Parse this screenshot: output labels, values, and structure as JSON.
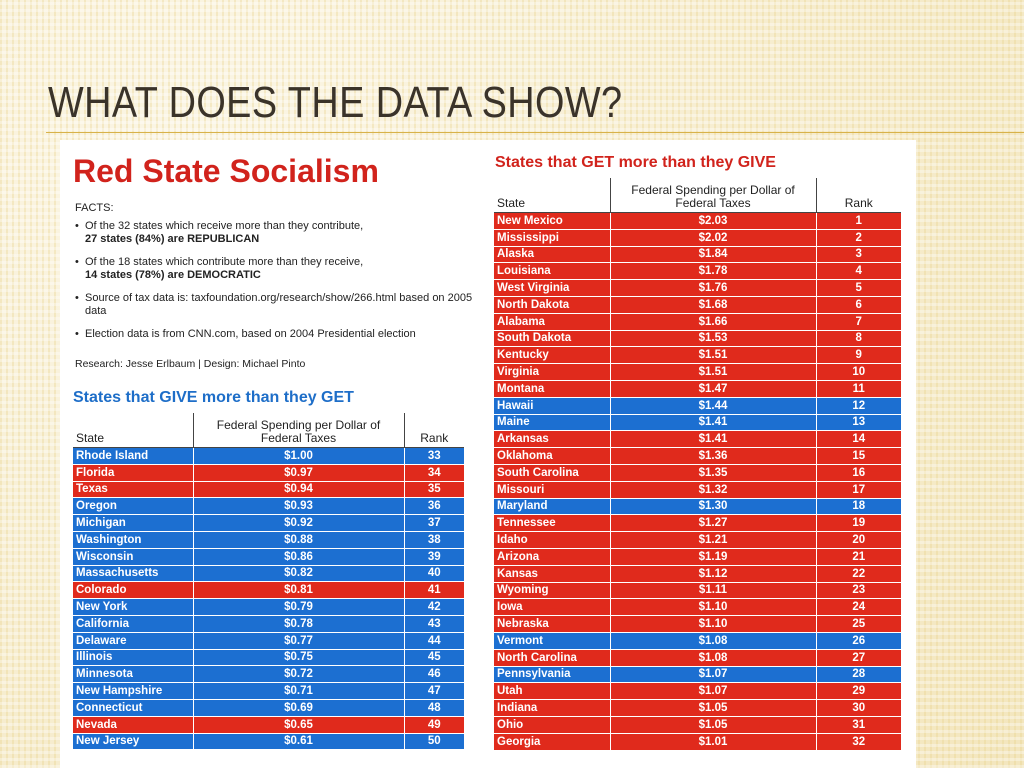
{
  "slide": {
    "title": "WHAT DOES THE DATA SHOW?"
  },
  "graphic": {
    "heading": "Red State Socialism",
    "facts_label": "FACTS:",
    "facts": [
      {
        "text": "Of the 32 states which receive more than they contribute,",
        "emphasis": "27 states (84%) are REPUBLICAN"
      },
      {
        "text": "Of the 18 states which contribute more than they receive,",
        "emphasis": "14 states (78%) are DEMOCRATIC"
      },
      {
        "text": "Source of tax data is: taxfoundation.org/research/show/266.html based on 2005 data"
      },
      {
        "text": "Election data is from CNN.com, based on 2004 Presidential election"
      }
    ],
    "credits": "Research: Jesse Erlbaum | Design: Michael Pinto",
    "colors": {
      "republican": "#e02a1c",
      "democratic": "#1c6fd1",
      "heading": "#d1231c",
      "give_title": "#1e6ec8"
    }
  },
  "give_table": {
    "title": "States that GIVE more than they GET",
    "columns": {
      "state": "State",
      "spending": "Federal Spending per Dollar of Federal Taxes",
      "rank": "Rank"
    },
    "rows": [
      {
        "state": "Rhode Island",
        "spending": "$1.00",
        "rank": "33",
        "party": "D"
      },
      {
        "state": "Florida",
        "spending": "$0.97",
        "rank": "34",
        "party": "R"
      },
      {
        "state": "Texas",
        "spending": "$0.94",
        "rank": "35",
        "party": "R"
      },
      {
        "state": "Oregon",
        "spending": "$0.93",
        "rank": "36",
        "party": "D"
      },
      {
        "state": "Michigan",
        "spending": "$0.92",
        "rank": "37",
        "party": "D"
      },
      {
        "state": "Washington",
        "spending": "$0.88",
        "rank": "38",
        "party": "D"
      },
      {
        "state": "Wisconsin",
        "spending": "$0.86",
        "rank": "39",
        "party": "D"
      },
      {
        "state": "Massachusetts",
        "spending": "$0.82",
        "rank": "40",
        "party": "D"
      },
      {
        "state": "Colorado",
        "spending": "$0.81",
        "rank": "41",
        "party": "R"
      },
      {
        "state": "New York",
        "spending": "$0.79",
        "rank": "42",
        "party": "D"
      },
      {
        "state": "California",
        "spending": "$0.78",
        "rank": "43",
        "party": "D"
      },
      {
        "state": "Delaware",
        "spending": "$0.77",
        "rank": "44",
        "party": "D"
      },
      {
        "state": "Illinois",
        "spending": "$0.75",
        "rank": "45",
        "party": "D"
      },
      {
        "state": "Minnesota",
        "spending": "$0.72",
        "rank": "46",
        "party": "D"
      },
      {
        "state": "New Hampshire",
        "spending": "$0.71",
        "rank": "47",
        "party": "D"
      },
      {
        "state": "Connecticut",
        "spending": "$0.69",
        "rank": "48",
        "party": "D"
      },
      {
        "state": "Nevada",
        "spending": "$0.65",
        "rank": "49",
        "party": "R"
      },
      {
        "state": "New Jersey",
        "spending": "$0.61",
        "rank": "50",
        "party": "D"
      }
    ]
  },
  "get_table": {
    "title": "States that GET more than they GIVE",
    "columns": {
      "state": "State",
      "spending": "Federal Spending per Dollar of Federal Taxes",
      "rank": "Rank"
    },
    "rows": [
      {
        "state": "New Mexico",
        "spending": "$2.03",
        "rank": "1",
        "party": "R"
      },
      {
        "state": "Mississippi",
        "spending": "$2.02",
        "rank": "2",
        "party": "R"
      },
      {
        "state": "Alaska",
        "spending": "$1.84",
        "rank": "3",
        "party": "R"
      },
      {
        "state": "Louisiana",
        "spending": "$1.78",
        "rank": "4",
        "party": "R"
      },
      {
        "state": "West Virginia",
        "spending": "$1.76",
        "rank": "5",
        "party": "R"
      },
      {
        "state": "North Dakota",
        "spending": "$1.68",
        "rank": "6",
        "party": "R"
      },
      {
        "state": "Alabama",
        "spending": "$1.66",
        "rank": "7",
        "party": "R"
      },
      {
        "state": "South Dakota",
        "spending": "$1.53",
        "rank": "8",
        "party": "R"
      },
      {
        "state": "Kentucky",
        "spending": "$1.51",
        "rank": "9",
        "party": "R"
      },
      {
        "state": "Virginia",
        "spending": "$1.51",
        "rank": "10",
        "party": "R"
      },
      {
        "state": "Montana",
        "spending": "$1.47",
        "rank": "11",
        "party": "R"
      },
      {
        "state": "Hawaii",
        "spending": "$1.44",
        "rank": "12",
        "party": "D"
      },
      {
        "state": "Maine",
        "spending": "$1.41",
        "rank": "13",
        "party": "D"
      },
      {
        "state": "Arkansas",
        "spending": "$1.41",
        "rank": "14",
        "party": "R"
      },
      {
        "state": "Oklahoma",
        "spending": "$1.36",
        "rank": "15",
        "party": "R"
      },
      {
        "state": "South Carolina",
        "spending": "$1.35",
        "rank": "16",
        "party": "R"
      },
      {
        "state": "Missouri",
        "spending": "$1.32",
        "rank": "17",
        "party": "R"
      },
      {
        "state": "Maryland",
        "spending": "$1.30",
        "rank": "18",
        "party": "D"
      },
      {
        "state": "Tennessee",
        "spending": "$1.27",
        "rank": "19",
        "party": "R"
      },
      {
        "state": "Idaho",
        "spending": "$1.21",
        "rank": "20",
        "party": "R"
      },
      {
        "state": "Arizona",
        "spending": "$1.19",
        "rank": "21",
        "party": "R"
      },
      {
        "state": "Kansas",
        "spending": "$1.12",
        "rank": "22",
        "party": "R"
      },
      {
        "state": "Wyoming",
        "spending": "$1.11",
        "rank": "23",
        "party": "R"
      },
      {
        "state": "Iowa",
        "spending": "$1.10",
        "rank": "24",
        "party": "R"
      },
      {
        "state": "Nebraska",
        "spending": "$1.10",
        "rank": "25",
        "party": "R"
      },
      {
        "state": "Vermont",
        "spending": "$1.08",
        "rank": "26",
        "party": "D"
      },
      {
        "state": "North Carolina",
        "spending": "$1.08",
        "rank": "27",
        "party": "R"
      },
      {
        "state": "Pennsylvania",
        "spending": "$1.07",
        "rank": "28",
        "party": "D"
      },
      {
        "state": "Utah",
        "spending": "$1.07",
        "rank": "29",
        "party": "R"
      },
      {
        "state": "Indiana",
        "spending": "$1.05",
        "rank": "30",
        "party": "R"
      },
      {
        "state": "Ohio",
        "spending": "$1.05",
        "rank": "31",
        "party": "R"
      },
      {
        "state": "Georgia",
        "spending": "$1.01",
        "rank": "32",
        "party": "R"
      }
    ]
  }
}
